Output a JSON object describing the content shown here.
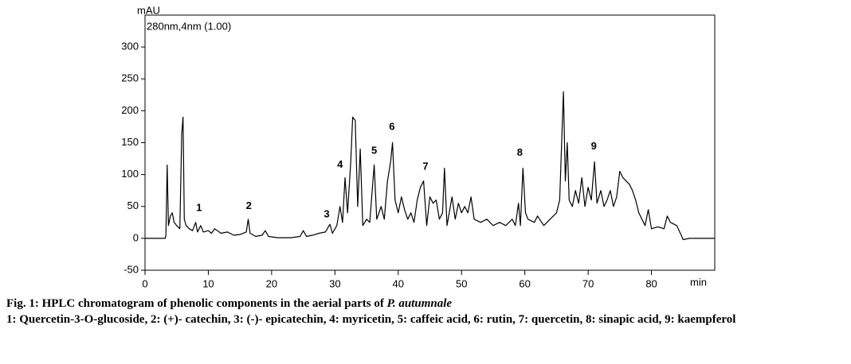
{
  "chart_data": {
    "type": "line",
    "ylabel": "mAU",
    "xlabel": "min",
    "subtitle": "280nm,4nm (1.00)",
    "xlim": [
      0,
      90
    ],
    "ylim": [
      -50,
      350
    ],
    "xticks": [
      0,
      10,
      20,
      30,
      40,
      50,
      60,
      70,
      80
    ],
    "yticks": [
      -50,
      0,
      50,
      100,
      150,
      200,
      250,
      300
    ],
    "x": [
      0,
      3.2,
      3.3,
      3.5,
      3.7,
      4,
      4.3,
      4.6,
      5,
      5.5,
      5.8,
      6,
      6.2,
      6.5,
      7,
      7.5,
      8,
      8.3,
      8.8,
      9.2,
      10,
      10.5,
      11,
      12,
      13,
      14,
      15,
      16,
      16.3,
      16.6,
      17.5,
      18.5,
      19,
      19.5,
      21,
      23,
      24.5,
      25,
      25.5,
      26.5,
      27.5,
      28.5,
      29.2,
      29.6,
      30.3,
      30.8,
      31.2,
      31.6,
      32,
      32.5,
      32.8,
      33.2,
      33.6,
      34,
      34.4,
      35,
      35.5,
      36.2,
      36.6,
      37.3,
      37.8,
      38.3,
      38.8,
      39.1,
      39.5,
      40,
      40.5,
      41,
      41.5,
      42,
      42.5,
      43,
      43.5,
      44,
      44.5,
      45,
      45.5,
      46,
      46.5,
      47,
      47.3,
      47.7,
      48.5,
      49,
      49.5,
      50,
      50.5,
      51,
      51.5,
      52,
      53,
      54,
      55,
      56,
      57,
      58,
      58.5,
      59,
      59.3,
      59.7,
      60.1,
      60.5,
      61.5,
      62,
      63,
      64,
      65,
      65.5,
      66.1,
      66.4,
      66.7,
      67,
      67.5,
      68,
      68.5,
      69,
      69.5,
      70,
      70.5,
      71,
      71.4,
      72,
      72.5,
      73,
      73.5,
      74,
      74.5,
      75,
      75.5,
      76,
      76.5,
      77,
      77.5,
      78,
      78.5,
      79,
      79.5,
      80,
      81,
      82,
      82.5,
      83,
      84,
      84.7,
      85,
      86,
      90
    ],
    "series": [
      {
        "color": "#000000",
        "values": [
          0,
          0,
          5,
          115,
          20,
          35,
          40,
          25,
          20,
          15,
          165,
          190,
          30,
          20,
          15,
          12,
          25,
          10,
          20,
          10,
          12,
          8,
          15,
          8,
          10,
          5,
          6,
          10,
          30,
          8,
          3,
          5,
          12,
          3,
          1,
          1,
          3,
          12,
          3,
          5,
          8,
          10,
          22,
          8,
          20,
          50,
          25,
          95,
          40,
          120,
          190,
          185,
          50,
          140,
          20,
          30,
          25,
          115,
          30,
          50,
          30,
          90,
          120,
          150,
          60,
          40,
          65,
          45,
          30,
          40,
          25,
          60,
          80,
          90,
          20,
          65,
          55,
          60,
          30,
          40,
          110,
          20,
          65,
          30,
          55,
          40,
          50,
          40,
          65,
          30,
          25,
          30,
          20,
          25,
          20,
          30,
          20,
          55,
          20,
          110,
          40,
          30,
          25,
          35,
          20,
          30,
          40,
          60,
          230,
          90,
          150,
          60,
          50,
          75,
          55,
          95,
          50,
          80,
          60,
          120,
          55,
          75,
          50,
          60,
          75,
          50,
          65,
          105,
          95,
          90,
          85,
          75,
          60,
          40,
          30,
          20,
          45,
          15,
          18,
          15,
          35,
          25,
          20,
          5,
          -2,
          0,
          0
        ]
      }
    ],
    "annotations": [
      {
        "text": "1",
        "x": 8.55,
        "y": 47
      },
      {
        "text": "2",
        "x": 16.4,
        "y": 50
      },
      {
        "text": "3",
        "x": 28.7,
        "y": 37
      },
      {
        "text": "4",
        "x": 30.8,
        "y": 115
      },
      {
        "text": "5",
        "x": 36.2,
        "y": 137
      },
      {
        "text": "6",
        "x": 39,
        "y": 174
      },
      {
        "text": "7",
        "x": 44.3,
        "y": 112
      },
      {
        "text": "8",
        "x": 59.2,
        "y": 134
      },
      {
        "text": "9",
        "x": 70.9,
        "y": 144
      }
    ]
  },
  "caption": {
    "title": "Fig. 1: HPLC chromatogram of phenolic components in the aerial parts of",
    "title_italic": "P. autumnale",
    "legend": "1: Quercetin-3-O-glucoside, 2: (+)- catechin, 3: (-)- epicatechin, 4: myricetin, 5: caffeic acid, 6: rutin, 7: quercetin, 8: sinapic acid, 9: kaempferol"
  }
}
